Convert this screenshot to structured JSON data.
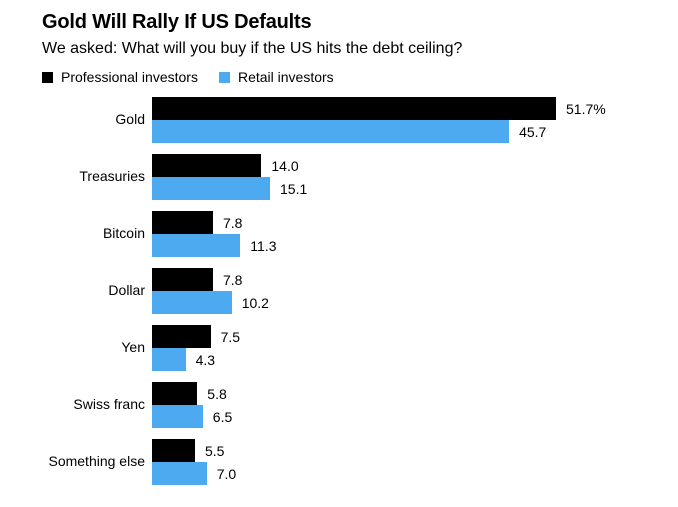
{
  "header": {
    "title": "Gold Will Rally If US Defaults",
    "subtitle": "We asked: What will you buy if the US hits the debt ceiling?"
  },
  "colors": {
    "professional": "#000000",
    "retail": "#4DA9F0",
    "background": "#FFFFFF",
    "text": "#000000"
  },
  "chart_data": {
    "type": "bar",
    "orientation": "horizontal",
    "title": "Gold Will Rally If US Defaults",
    "subtitle": "We asked: What will you buy if the US hits the debt ceiling?",
    "categories": [
      "Gold",
      "Treasuries",
      "Bitcoin",
      "Dollar",
      "Yen",
      "Swiss franc",
      "Something else"
    ],
    "series": [
      {
        "name": "Professional investors",
        "color": "#000000",
        "values": [
          51.7,
          14.0,
          7.8,
          7.8,
          7.5,
          5.8,
          5.5
        ],
        "labels": [
          "51.7%",
          "14.0",
          "7.8",
          "7.8",
          "7.5",
          "5.8",
          "5.5"
        ]
      },
      {
        "name": "Retail investors",
        "color": "#4DA9F0",
        "values": [
          45.7,
          15.1,
          11.3,
          10.2,
          4.3,
          6.5,
          7.0
        ],
        "labels": [
          "45.7",
          "15.1",
          "11.3",
          "10.2",
          "4.3",
          "6.5",
          "7.0"
        ]
      }
    ],
    "xlim": [
      0,
      51.7
    ],
    "grid": false,
    "axis_ticks_visible": false,
    "value_labels": "right-of-bar",
    "legend_position": "top-left"
  }
}
